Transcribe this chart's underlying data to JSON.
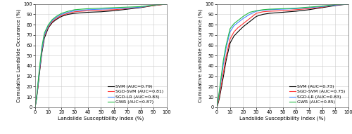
{
  "left": {
    "xlabel": "Landslide Susceptibility Index (%)",
    "ylabel": "Cumulative Landslide Occurance (%)",
    "xlim": [
      0,
      100
    ],
    "ylim": [
      0,
      100
    ],
    "xticks": [
      0,
      10,
      20,
      30,
      40,
      50,
      60,
      70,
      80,
      90,
      100
    ],
    "yticks": [
      0,
      10,
      20,
      30,
      40,
      50,
      60,
      70,
      80,
      90,
      100
    ],
    "curves": [
      {
        "label": "SVM (AUC=0.79)",
        "color": "#000000",
        "x": [
          0,
          1,
          2,
          3,
          5,
          7,
          10,
          13,
          16,
          20,
          25,
          30,
          40,
          50,
          60,
          70,
          80,
          90,
          100
        ],
        "y": [
          0,
          8,
          18,
          30,
          52,
          67,
          77,
          82,
          85,
          88,
          90,
          91,
          92,
          92.5,
          93.5,
          95,
          96.5,
          98.5,
          100
        ]
      },
      {
        "label": "SGD-SVM (AUC=0.81)",
        "color": "#ff3333",
        "x": [
          0,
          1,
          2,
          3,
          5,
          7,
          10,
          13,
          16,
          20,
          25,
          30,
          40,
          50,
          60,
          70,
          80,
          90,
          100
        ],
        "y": [
          0,
          9,
          19,
          32,
          54,
          69,
          78,
          83,
          86,
          89,
          91,
          92.5,
          93.5,
          94,
          94.5,
          95.5,
          97,
          98.5,
          100
        ]
      },
      {
        "label": "SGD-LR (AUC=0.83)",
        "color": "#4488ff",
        "x": [
          0,
          1,
          2,
          3,
          5,
          7,
          10,
          13,
          16,
          20,
          25,
          30,
          40,
          50,
          60,
          70,
          80,
          90,
          100
        ],
        "y": [
          0,
          9,
          20,
          33,
          55,
          70,
          79,
          84,
          87,
          90,
          92,
          93.5,
          94.5,
          95,
          95.5,
          96,
          97,
          99,
          100
        ]
      },
      {
        "label": "GWR (AUC=0.87)",
        "color": "#22bb44",
        "x": [
          0,
          1,
          2,
          3,
          5,
          7,
          10,
          13,
          16,
          20,
          25,
          30,
          40,
          50,
          60,
          70,
          80,
          90,
          100
        ],
        "y": [
          0,
          10,
          22,
          35,
          58,
          72,
          80,
          85,
          88,
          91,
          93,
          94.5,
          95.5,
          96,
          96.5,
          97,
          97.5,
          99,
          100
        ]
      }
    ],
    "legend_loc": "lower right"
  },
  "right": {
    "xlabel": "Landslide Susceptibility Index (%)",
    "ylabel": "Cumulative Landslide Occurance (%)",
    "xlim": [
      0,
      100
    ],
    "ylim": [
      0,
      100
    ],
    "xticks": [
      0,
      10,
      20,
      30,
      40,
      50,
      60,
      70,
      80,
      90,
      100
    ],
    "yticks": [
      0,
      10,
      20,
      30,
      40,
      50,
      60,
      70,
      80,
      90,
      100
    ],
    "curves": [
      {
        "label": "SVM (AUC=0.73)",
        "color": "#000000",
        "x": [
          0,
          1,
          2,
          3,
          5,
          7,
          10,
          13,
          16,
          20,
          25,
          30,
          35,
          40,
          50,
          60,
          70,
          80,
          90,
          100
        ],
        "y": [
          0,
          4,
          9,
          16,
          30,
          45,
          62,
          69,
          73,
          78,
          83,
          88,
          90,
          91,
          92,
          93,
          94.5,
          96.5,
          98.5,
          100
        ]
      },
      {
        "label": "SGD-SVM (AUC=0.75)",
        "color": "#ff3333",
        "x": [
          0,
          1,
          2,
          3,
          5,
          7,
          10,
          13,
          16,
          20,
          25,
          30,
          35,
          40,
          50,
          60,
          70,
          80,
          90,
          100
        ],
        "y": [
          0,
          5,
          11,
          19,
          34,
          49,
          66,
          73,
          77,
          81,
          86,
          91,
          92.5,
          93,
          93.5,
          94.5,
          95.5,
          97,
          99,
          100
        ]
      },
      {
        "label": "SGD-LR (AUC=0.83)",
        "color": "#4488ff",
        "x": [
          0,
          1,
          2,
          3,
          5,
          7,
          10,
          13,
          16,
          20,
          25,
          30,
          35,
          40,
          50,
          60,
          70,
          80,
          90,
          100
        ],
        "y": [
          0,
          7,
          15,
          24,
          42,
          57,
          73,
          79,
          82,
          86,
          90,
          93,
          94,
          94.5,
          95,
          95.5,
          96.5,
          97.5,
          99,
          100
        ]
      },
      {
        "label": "GWR (AUC=0.85)",
        "color": "#22bb44",
        "x": [
          0,
          1,
          2,
          3,
          5,
          7,
          10,
          13,
          16,
          20,
          25,
          30,
          35,
          40,
          50,
          60,
          70,
          80,
          90,
          100
        ],
        "y": [
          0,
          8,
          17,
          27,
          46,
          60,
          76,
          81,
          84,
          88,
          92,
          93.5,
          94.5,
          95,
          95.5,
          96,
          97,
          98,
          99.5,
          100
        ]
      }
    ],
    "legend_loc": "lower right"
  },
  "bg_color": "#ffffff",
  "grid_color": "#cccccc",
  "label_fontsize": 5.2,
  "tick_fontsize": 4.8,
  "legend_fontsize": 4.5,
  "line_width": 0.8
}
